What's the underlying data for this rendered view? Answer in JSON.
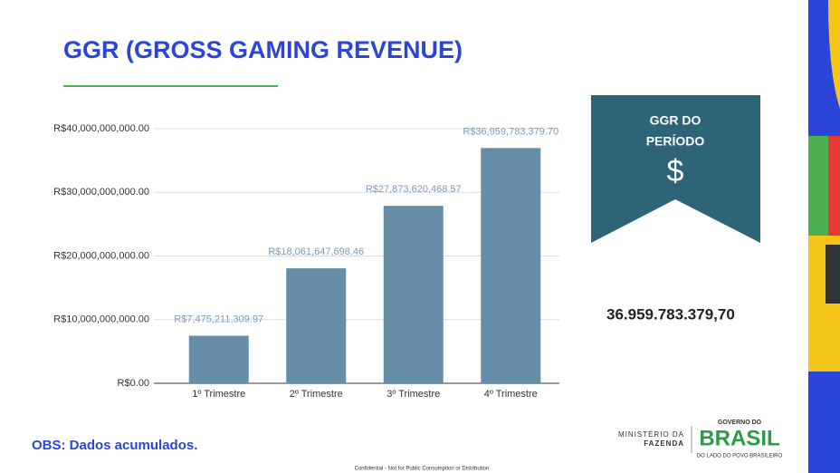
{
  "chart_data": {
    "type": "bar",
    "title": "GGR (GROSS GAMING REVENUE)",
    "categories": [
      "1º Trimestre",
      "2º Trimestre",
      "3º Trimestre",
      "4º Trimestre"
    ],
    "values": [
      7475211309.97,
      18061647698.46,
      27873620468.57,
      36959783379.7
    ],
    "value_labels": [
      "R$7,475,211,309.97",
      "R$18,061,647,698.46",
      "R$27,873,620,468.57",
      "R$36,959,783,379.70"
    ],
    "color": "#678ea9",
    "ylim": [
      0,
      40000000000
    ],
    "yticks": [
      {
        "value": 0,
        "label": "R$0.00"
      },
      {
        "value": 10000000000,
        "label": "R$10,000,000,000.00"
      },
      {
        "value": 20000000000,
        "label": "R$20,000,000,000.00"
      },
      {
        "value": 30000000000,
        "label": "R$30,000,000,000.00"
      },
      {
        "value": 40000000000,
        "label": "R$40,000,000,000.00"
      }
    ],
    "grid": true
  },
  "slide": {
    "badge_title": [
      "GGR DO",
      "PERÍODO"
    ],
    "badge_symbol": "$",
    "total": "36.959.783.379,70",
    "note": "OBS: Dados acumulados.",
    "footer": "Confidential - Not for Public Consumption or Distribution",
    "ministry": [
      "MINISTÉRIO DA",
      "FAZENDA"
    ],
    "gov_top": "GOVERNO DO",
    "gov_name": "BRASIL",
    "gov_bottom": "DO LADO DO POVO BRASILEIRO"
  }
}
